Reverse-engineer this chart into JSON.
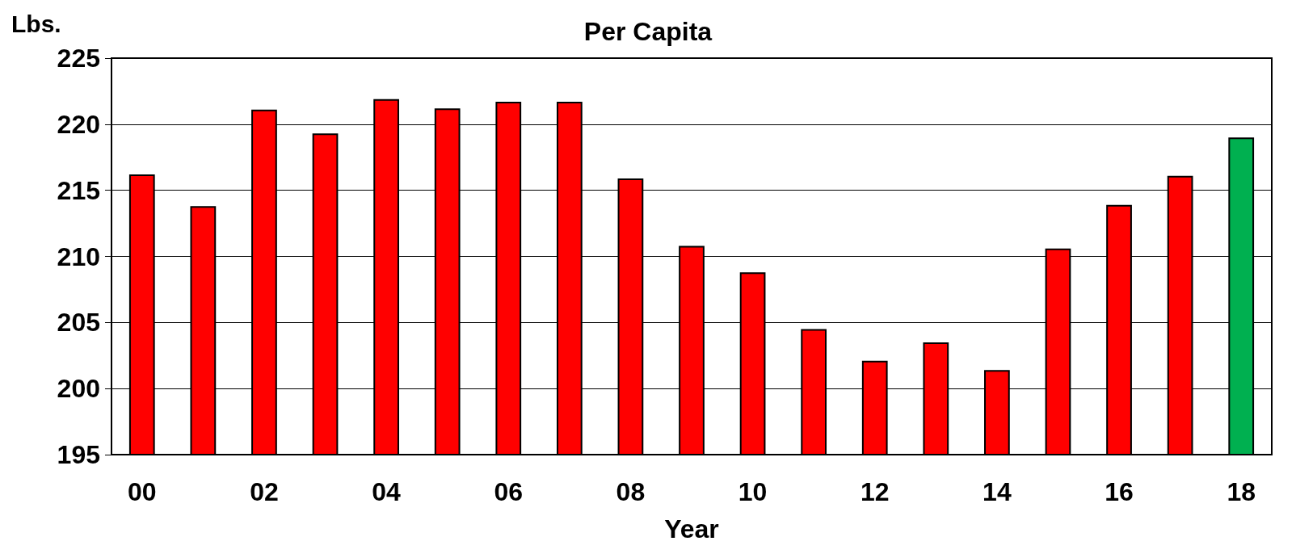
{
  "chart_data": {
    "type": "bar",
    "title": "Per Capita",
    "xlabel": "Year",
    "ylabel": "Lbs.",
    "categories": [
      "00",
      null,
      "02",
      null,
      "04",
      null,
      "06",
      null,
      "08",
      null,
      "10",
      null,
      "12",
      null,
      "14",
      null,
      "16",
      null,
      "18"
    ],
    "values": [
      216.2,
      213.8,
      221.1,
      219.3,
      221.9,
      221.2,
      221.7,
      221.7,
      215.9,
      210.8,
      208.8,
      204.5,
      202.1,
      203.5,
      201.4,
      210.6,
      213.9,
      216.1,
      219.0
    ],
    "colors": [
      "#ff0000",
      "#ff0000",
      "#ff0000",
      "#ff0000",
      "#ff0000",
      "#ff0000",
      "#ff0000",
      "#ff0000",
      "#ff0000",
      "#ff0000",
      "#ff0000",
      "#ff0000",
      "#ff0000",
      "#ff0000",
      "#ff0000",
      "#ff0000",
      "#ff0000",
      "#ff0000",
      "#00b050"
    ],
    "ylim": [
      195,
      225
    ],
    "yticks": [
      195,
      200,
      205,
      210,
      215,
      220,
      225
    ],
    "grid": "y"
  }
}
